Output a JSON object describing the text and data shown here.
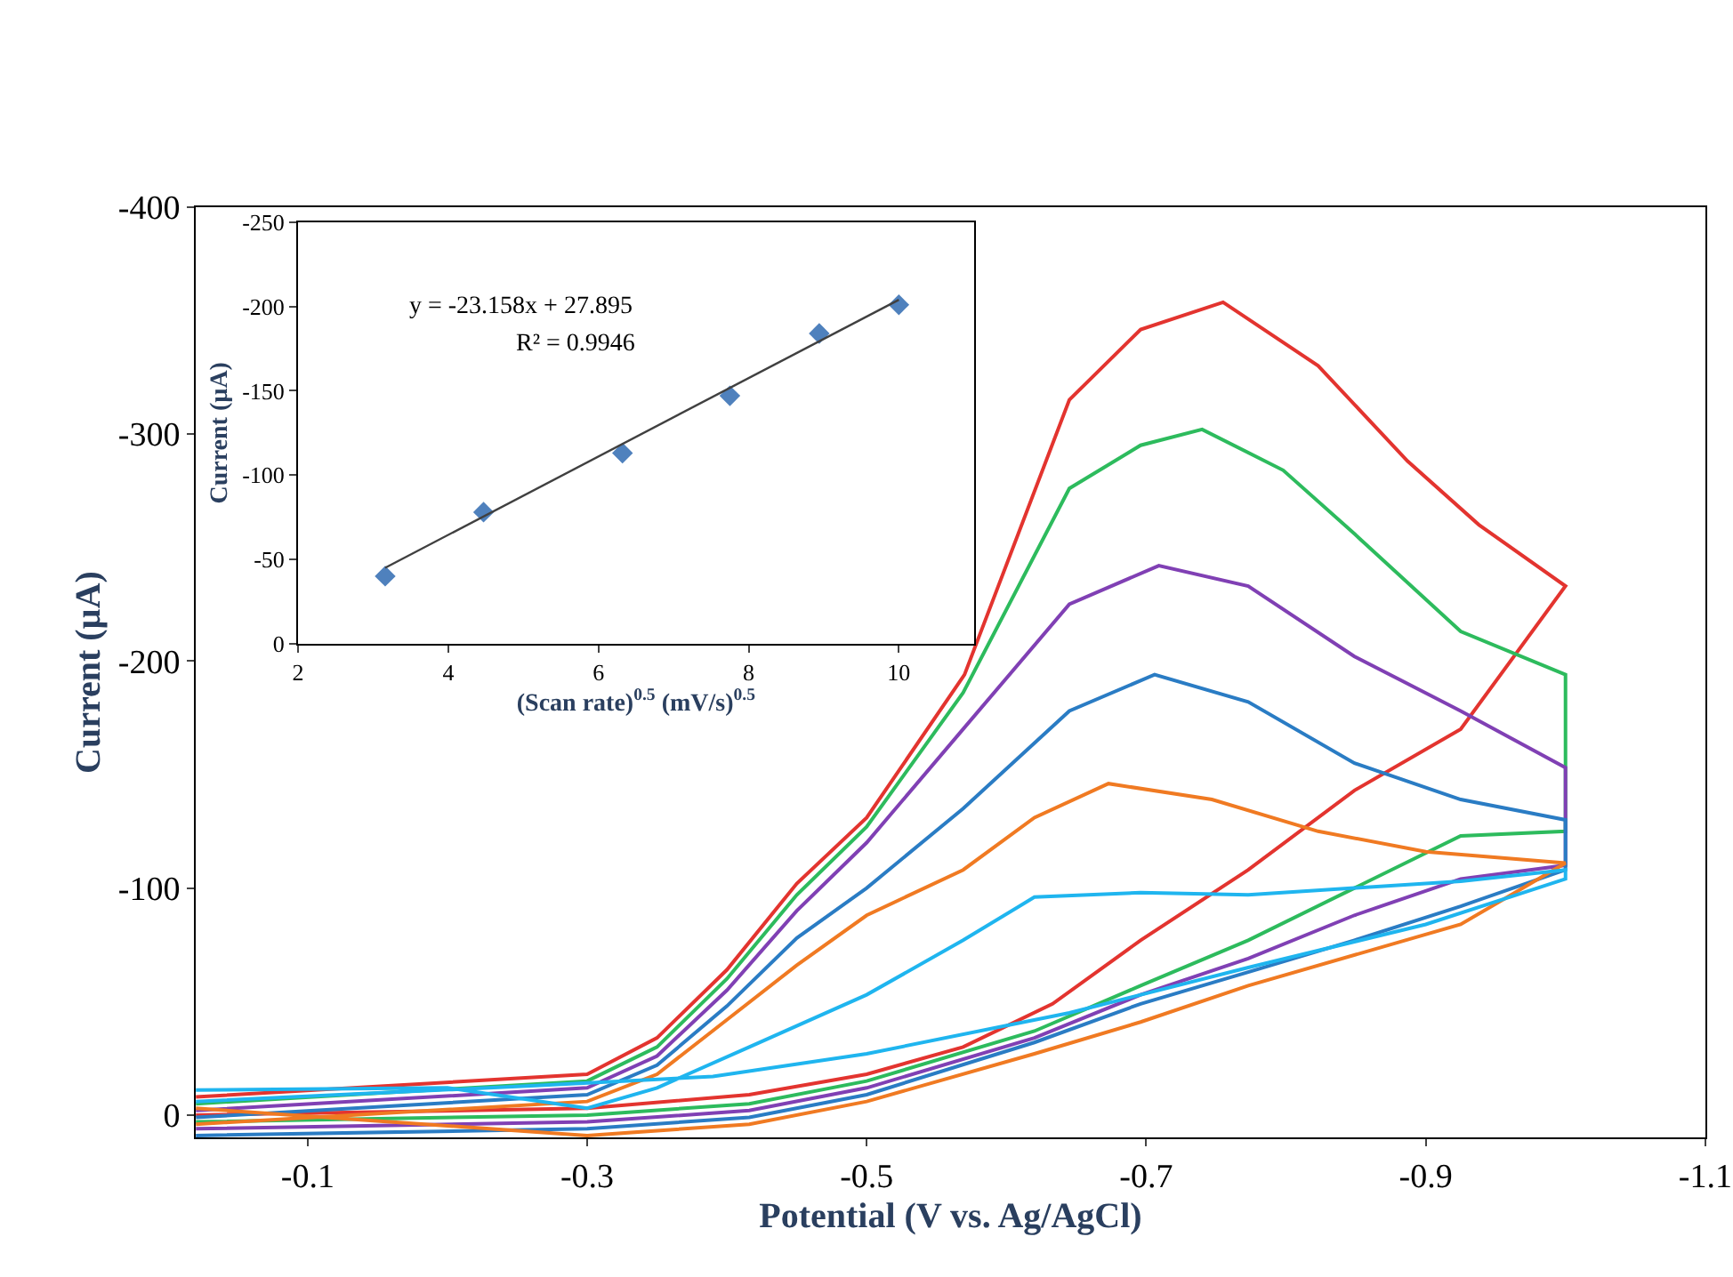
{
  "chart_data": [
    {
      "type": "line",
      "xlabel": "Potential (V vs. Ag/AgCl)",
      "ylabel": "Current (µA)",
      "xlim": [
        -0.02,
        -1.1
      ],
      "xticks": [
        -0.1,
        -0.3,
        -0.5,
        -0.7,
        -0.9,
        -1.1
      ],
      "ylim": [
        10,
        -400
      ],
      "yticks": [
        0,
        -100,
        -200,
        -300,
        -400
      ],
      "marker": "none",
      "line_style": "solid",
      "series": [
        {
          "color": "#e3342f",
          "x": [
            -0.02,
            -0.3,
            -0.35,
            -0.4,
            -0.45,
            -0.5,
            -0.57,
            -0.645,
            -0.696,
            -0.755,
            -0.823,
            -0.887,
            -0.938,
            -1.0,
            -0.925,
            -0.849,
            -0.773,
            -0.696,
            -0.633,
            -0.569,
            -0.5,
            -0.416,
            -0.3,
            -0.02
          ],
          "values": [
            -8,
            -18,
            -34,
            -64,
            -102,
            -131,
            -194,
            -315,
            -346,
            -358,
            -330,
            -288,
            -260,
            -233,
            -170,
            -143,
            -108,
            -77,
            -49,
            -30,
            -18,
            -9,
            -3,
            0
          ]
        },
        {
          "color": "#2dbb5d",
          "x": [
            -0.02,
            -0.3,
            -0.35,
            -0.4,
            -0.45,
            -0.5,
            -0.569,
            -0.645,
            -0.696,
            -0.74,
            -0.798,
            -0.849,
            -0.925,
            -1.0,
            -1.0,
            -0.925,
            -0.849,
            -0.773,
            -0.696,
            -0.62,
            -0.5,
            -0.416,
            -0.3,
            -0.02
          ],
          "values": [
            -5,
            -15,
            -30,
            -60,
            -97,
            -127,
            -186,
            -276,
            -295,
            -302,
            -284,
            -256,
            -213,
            -194,
            -125,
            -123,
            -100,
            -77,
            -57,
            -37,
            -15,
            -5,
            0,
            3
          ]
        },
        {
          "color": "#8040b4",
          "x": [
            -0.02,
            -0.3,
            -0.35,
            -0.4,
            -0.45,
            -0.5,
            -0.569,
            -0.645,
            -0.709,
            -0.773,
            -0.849,
            -0.925,
            -1.0,
            -1.0,
            -0.925,
            -0.849,
            -0.773,
            -0.696,
            -0.62,
            -0.5,
            -0.416,
            -0.3,
            -0.02
          ],
          "values": [
            -2,
            -12,
            -26,
            -55,
            -90,
            -120,
            -170,
            -225,
            -242,
            -233,
            -202,
            -178,
            -153,
            -110,
            -104,
            -88,
            -69,
            -53,
            -34,
            -12,
            -2,
            3,
            6
          ]
        },
        {
          "color": "#2a7cc4",
          "x": [
            -0.02,
            -0.3,
            -0.35,
            -0.4,
            -0.45,
            -0.5,
            -0.569,
            -0.645,
            -0.706,
            -0.773,
            -0.849,
            -0.925,
            -1.0,
            -1.0,
            -0.925,
            -0.849,
            -0.773,
            -0.696,
            -0.62,
            -0.5,
            -0.416,
            -0.3,
            -0.02
          ],
          "values": [
            1,
            -9,
            -22,
            -48,
            -78,
            -100,
            -135,
            -178,
            -194,
            -182,
            -155,
            -139,
            -130,
            -108,
            -92,
            -77,
            -63,
            -49,
            -32,
            -9,
            1,
            6,
            9
          ]
        },
        {
          "color": "#f07a22",
          "x": [
            -0.02,
            -0.3,
            -0.35,
            -0.4,
            -0.45,
            -0.5,
            -0.569,
            -0.62,
            -0.673,
            -0.747,
            -0.823,
            -0.9,
            -1.0,
            -0.925,
            -0.773,
            -0.696,
            -0.62,
            -0.5,
            -0.416,
            -0.3,
            -0.02
          ],
          "values": [
            4,
            -6,
            -18,
            -42,
            -66,
            -88,
            -108,
            -131,
            -146,
            -139,
            -125,
            -116,
            -111,
            -84,
            -57,
            -41,
            -27,
            -6,
            4,
            9,
            -3
          ]
        },
        {
          "color": "#1fb5ef",
          "x": [
            -0.02,
            -0.2,
            -0.3,
            -0.35,
            -0.416,
            -0.5,
            -0.569,
            -0.62,
            -0.696,
            -0.773,
            -0.849,
            -0.925,
            -1.0,
            -1.0,
            -0.9,
            -0.773,
            -0.645,
            -0.5,
            -0.39,
            -0.263,
            -0.02
          ],
          "values": [
            -11,
            -12,
            -3,
            -12,
            -30,
            -53,
            -77,
            -96,
            -98,
            -97,
            -100,
            -103,
            -108,
            -104,
            -84,
            -65,
            -45,
            -27,
            -17,
            -13,
            -6
          ]
        }
      ]
    },
    {
      "type": "scatter",
      "xlabel": "(Scan rate)$^{0.5}$ (mV/s)$^{0.5}$",
      "ylabel": "Current (µA)",
      "xlim": [
        2,
        11
      ],
      "xticks": [
        2,
        4,
        6,
        8,
        10
      ],
      "ylim": [
        0,
        -250
      ],
      "yticks": [
        0,
        -50,
        -100,
        -150,
        -200,
        -250
      ],
      "annotations": [
        "y = -23.158x + 27.895",
        "R² = 0.9946"
      ],
      "series": [
        {
          "type": "scatter",
          "marker": "diamond",
          "color": "#4f81bd",
          "x": [
            3.16,
            4.47,
            6.32,
            7.75,
            8.94,
            10
          ],
          "values": [
            -40,
            -78,
            -113,
            -147,
            -184,
            -201
          ]
        },
        {
          "type": "line",
          "marker": "none",
          "color": "#404040",
          "x": [
            3.16,
            10
          ],
          "values": [
            -45,
            -204
          ]
        }
      ]
    }
  ]
}
